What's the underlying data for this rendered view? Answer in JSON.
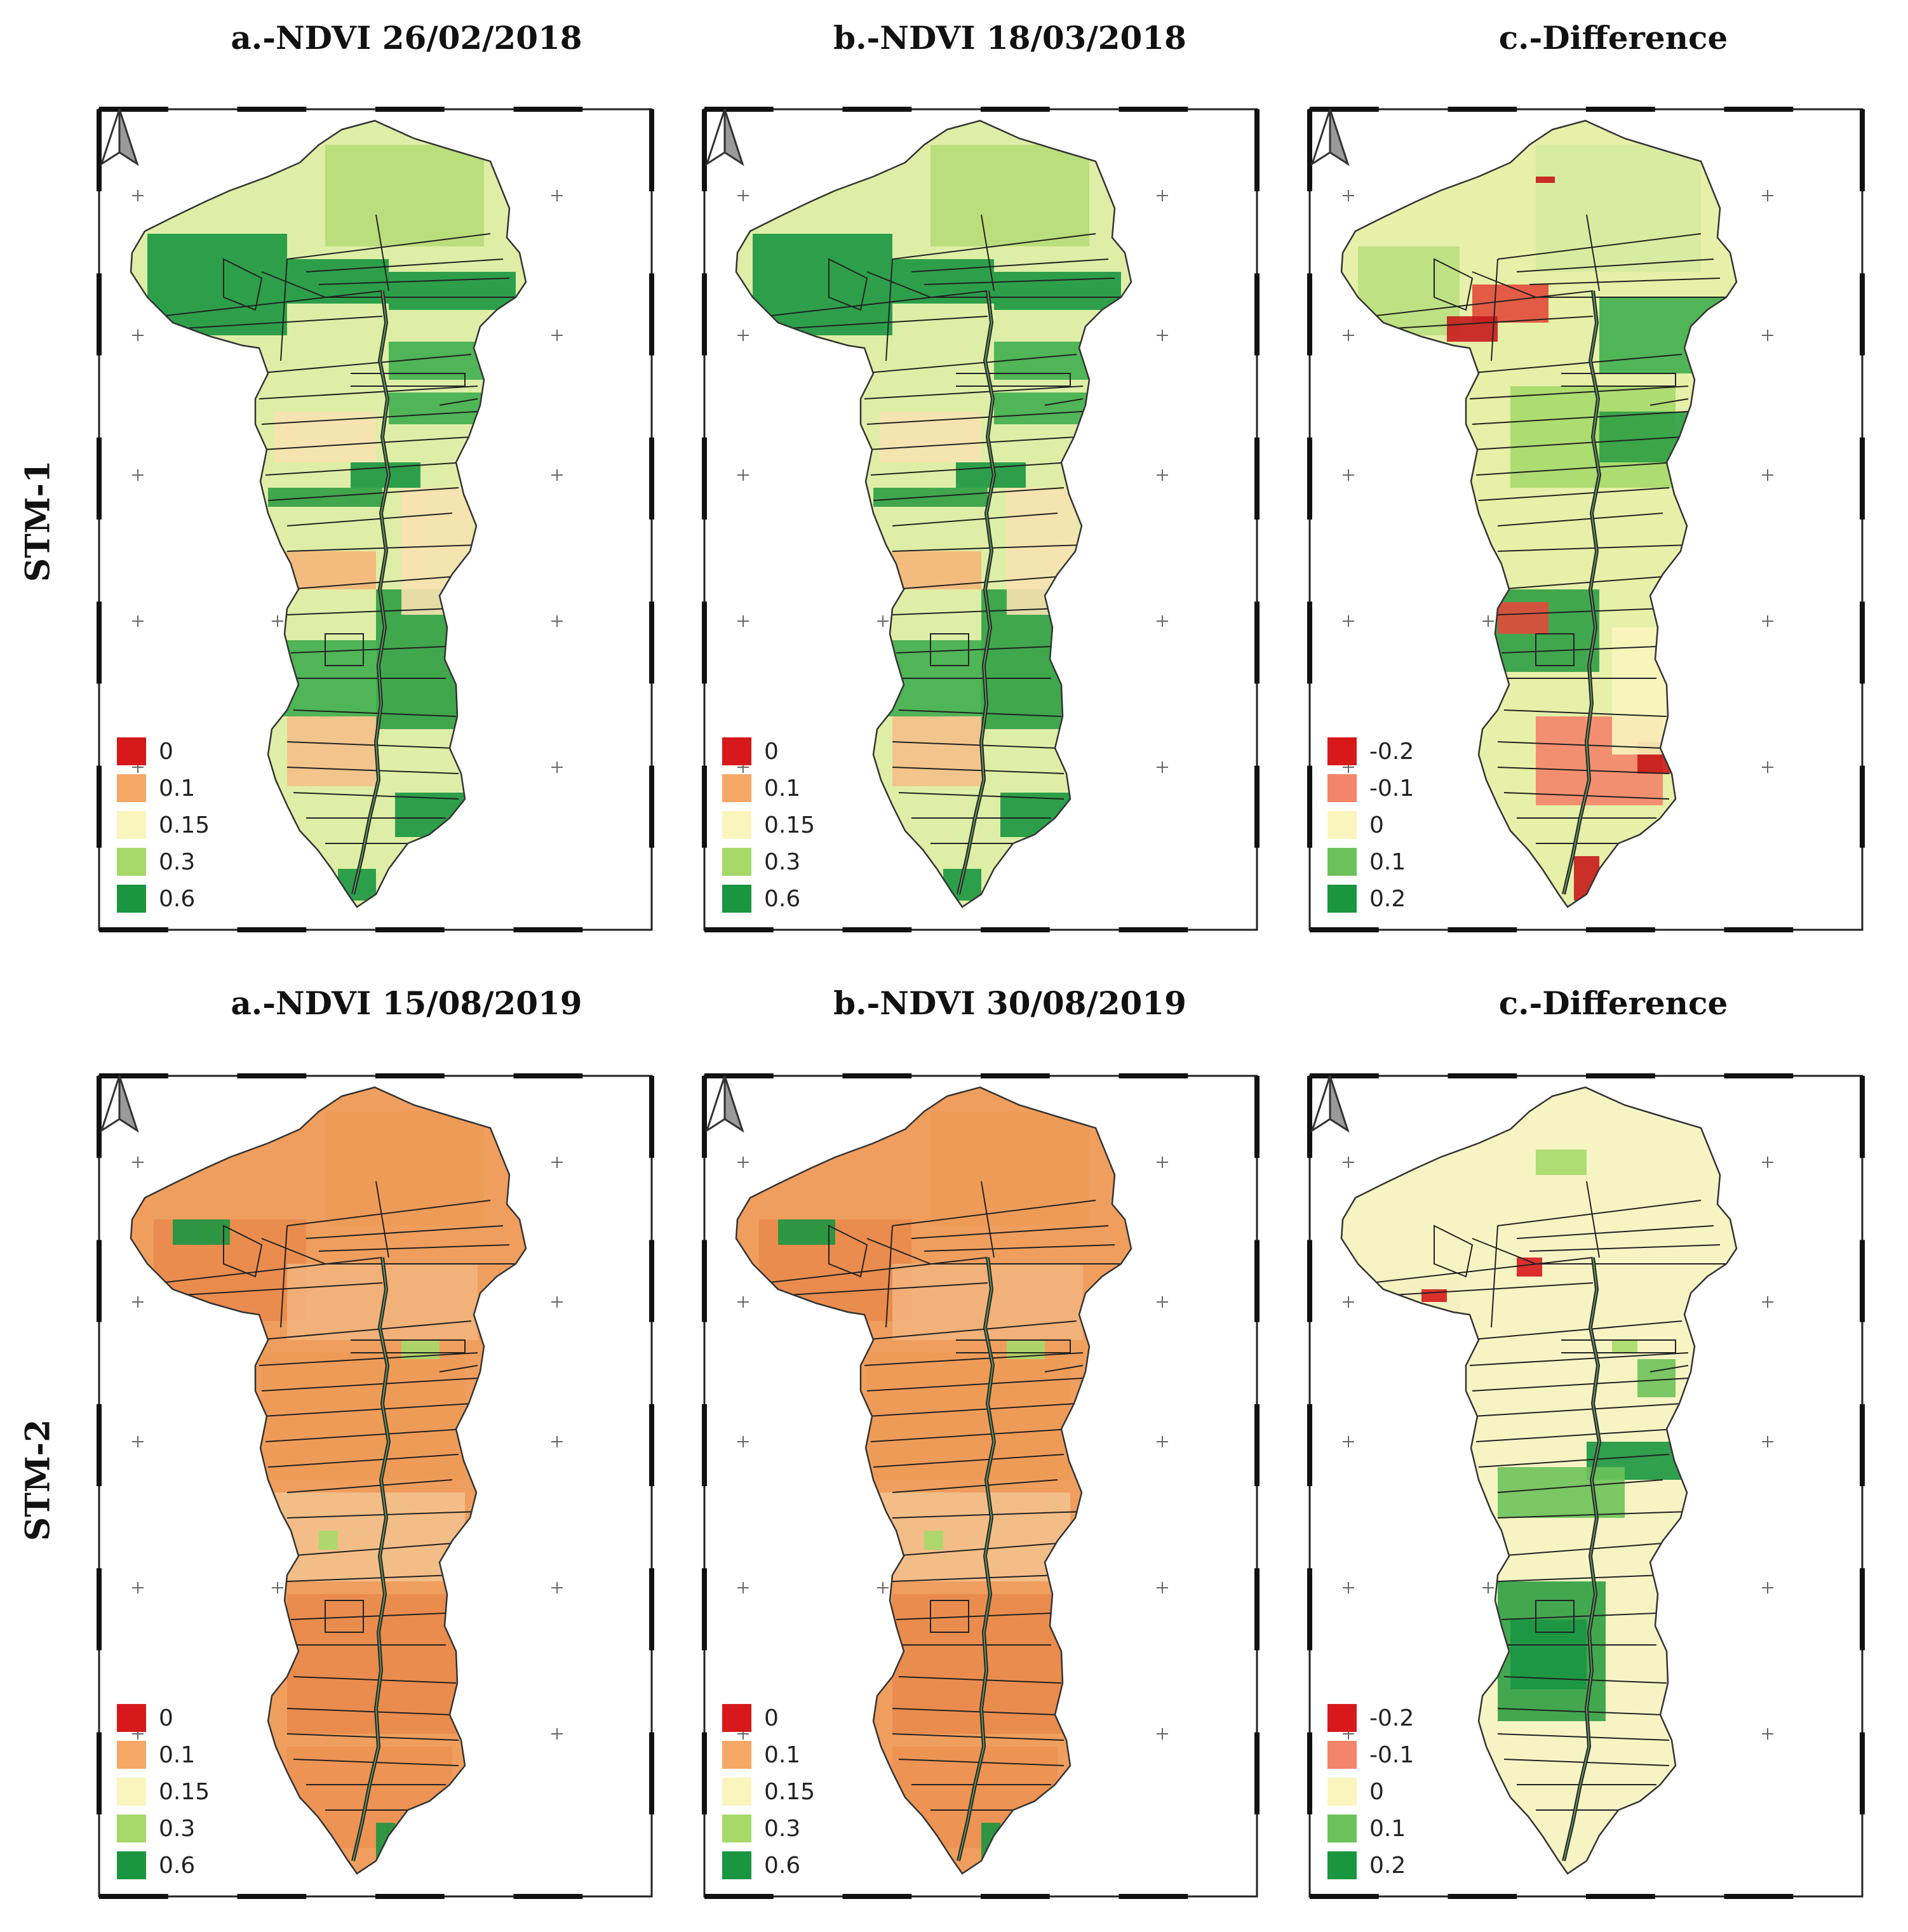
{
  "rows": [
    {
      "label": "STM-1",
      "panels": [
        {
          "title": "a.-NDVI 26/02/2018",
          "scheme": "ndvi",
          "tone": "green",
          "legend": [
            {
              "label": "0",
              "color": "#d7191c"
            },
            {
              "label": "0.1",
              "color": "#f5a765"
            },
            {
              "label": "0.15",
              "color": "#f9f5bd"
            },
            {
              "label": "0.3",
              "color": "#a6d96a"
            },
            {
              "label": "0.6",
              "color": "#1a9641"
            }
          ]
        },
        {
          "title": "b.-NDVI 18/03/2018",
          "scheme": "ndvi",
          "tone": "green",
          "legend": [
            {
              "label": "0",
              "color": "#d7191c"
            },
            {
              "label": "0.1",
              "color": "#f5a765"
            },
            {
              "label": "0.15",
              "color": "#f9f5bd"
            },
            {
              "label": "0.3",
              "color": "#a6d96a"
            },
            {
              "label": "0.6",
              "color": "#1a9641"
            }
          ]
        },
        {
          "title": "c.-Difference",
          "scheme": "diff",
          "tone": "mixed",
          "legend": [
            {
              "label": "-0.2",
              "color": "#d7191c"
            },
            {
              "label": "-0.1",
              "color": "#f4846a"
            },
            {
              "label": "0",
              "color": "#f9f5bd"
            },
            {
              "label": "0.1",
              "color": "#6cc25a"
            },
            {
              "label": "0.2",
              "color": "#1a9641"
            }
          ]
        }
      ]
    },
    {
      "label": "STM-2",
      "panels": [
        {
          "title": "a.-NDVI 15/08/2019",
          "scheme": "ndvi",
          "tone": "orange",
          "legend": [
            {
              "label": "0",
              "color": "#d7191c"
            },
            {
              "label": "0.1",
              "color": "#f5a765"
            },
            {
              "label": "0.15",
              "color": "#f9f5bd"
            },
            {
              "label": "0.3",
              "color": "#a6d96a"
            },
            {
              "label": "0.6",
              "color": "#1a9641"
            }
          ]
        },
        {
          "title": "b.-NDVI 30/08/2019",
          "scheme": "ndvi",
          "tone": "orange",
          "legend": [
            {
              "label": "0",
              "color": "#d7191c"
            },
            {
              "label": "0.1",
              "color": "#f5a765"
            },
            {
              "label": "0.15",
              "color": "#f9f5bd"
            },
            {
              "label": "0.3",
              "color": "#a6d96a"
            },
            {
              "label": "0.6",
              "color": "#1a9641"
            }
          ]
        },
        {
          "title": "c.-Difference",
          "scheme": "diff",
          "tone": "pale",
          "legend": [
            {
              "label": "-0.2",
              "color": "#d7191c"
            },
            {
              "label": "-0.1",
              "color": "#f4846a"
            },
            {
              "label": "0",
              "color": "#f9f5bd"
            },
            {
              "label": "0.1",
              "color": "#6cc25a"
            },
            {
              "label": "0.2",
              "color": "#1a9641"
            }
          ]
        }
      ]
    }
  ],
  "icons": {
    "north_arrow": "north-arrow-icon",
    "graticule": "graticule-cross-icon"
  }
}
